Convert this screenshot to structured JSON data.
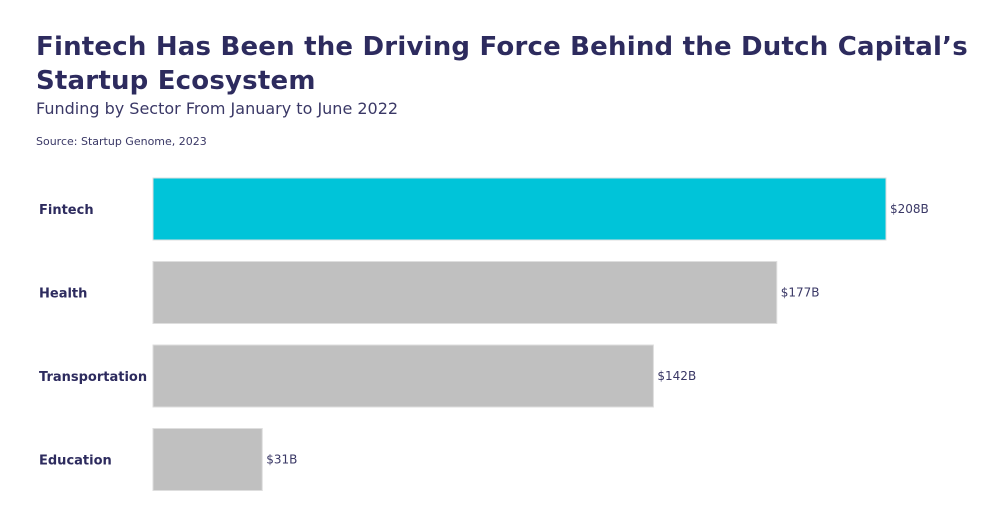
{
  "chart_data": {
    "type": "bar",
    "orientation": "horizontal",
    "title": "Fintech Has Been the Driving Force Behind the Dutch Capital’s Startup Ecosystem",
    "subtitle": "Funding by Sector From January to June 2022",
    "source": "Source: Startup Genome, 2023",
    "categories": [
      "Fintech",
      "Health",
      "Transportation",
      "Education"
    ],
    "values": [
      208,
      177,
      142,
      31
    ],
    "data_labels": [
      "$208B",
      "$177B",
      "$142B",
      "$31B"
    ],
    "unit": "$B",
    "xlim": [
      0,
      208
    ],
    "grid": false,
    "colors": [
      "#00c4d9",
      "#c0c0c0",
      "#c0c0c0",
      "#c0c0c0"
    ]
  }
}
